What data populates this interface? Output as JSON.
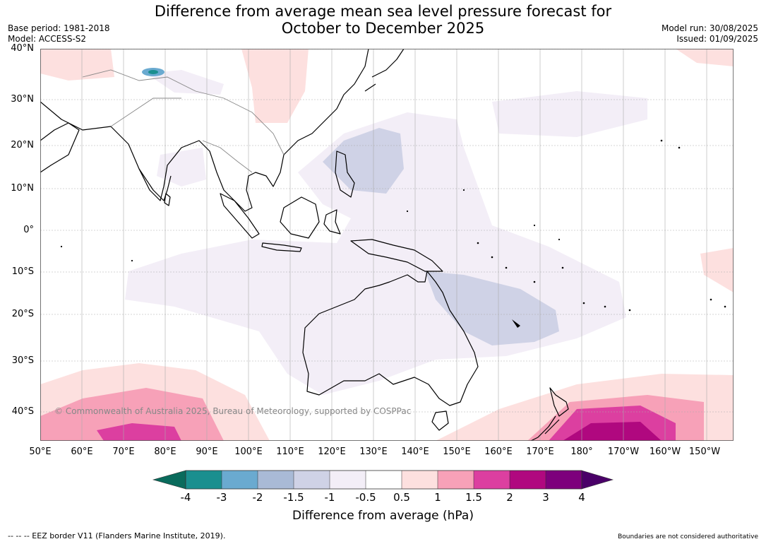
{
  "title_line1": "Difference from average mean sea level pressure forecast for",
  "title_line2": "October to December 2025",
  "base_period": "Base period: 1981-2018",
  "model": "Model: ACCESS-S2",
  "model_run": "Model run: 30/08/2025",
  "issued": "Issued: 01/09/2025",
  "lat_labels": [
    "40°N",
    "30°N",
    "20°N",
    "10°N",
    "0°",
    "10°S",
    "20°S",
    "30°S",
    "40°S"
  ],
  "lon_labels": [
    "50°E",
    "60°E",
    "70°E",
    "80°E",
    "90°E",
    "100°E",
    "110°E",
    "120°E",
    "130°E",
    "140°E",
    "150°E",
    "160°E",
    "170°E",
    "180°",
    "170°W",
    "160°W",
    "150°W"
  ],
  "copyright": "© Commonwealth of Australia 2025, Bureau of Meteorology, supported by COSPPac",
  "colorbar": {
    "ticks": [
      "-4",
      "-3",
      "-2",
      "-1.5",
      "-1",
      "-0.5",
      "0.5",
      "1",
      "1.5",
      "2",
      "3",
      "4"
    ],
    "colors": [
      "#1a8f8f",
      "#6aaad0",
      "#a9bad6",
      "#cfd2e6",
      "#f3eef7",
      "#ffffff",
      "#fde0df",
      "#f7a1b8",
      "#dc3fa0",
      "#b0087f",
      "#7d007c"
    ],
    "under_color": "#0a6b5c",
    "over_color": "#4a0068",
    "label": "Difference from average (hPa)"
  },
  "eez_note": "--  --  -- EEZ border V11 (Flanders Marine Institute, 2019).",
  "disclaimer": "Boundaries are not considered authoritative"
}
